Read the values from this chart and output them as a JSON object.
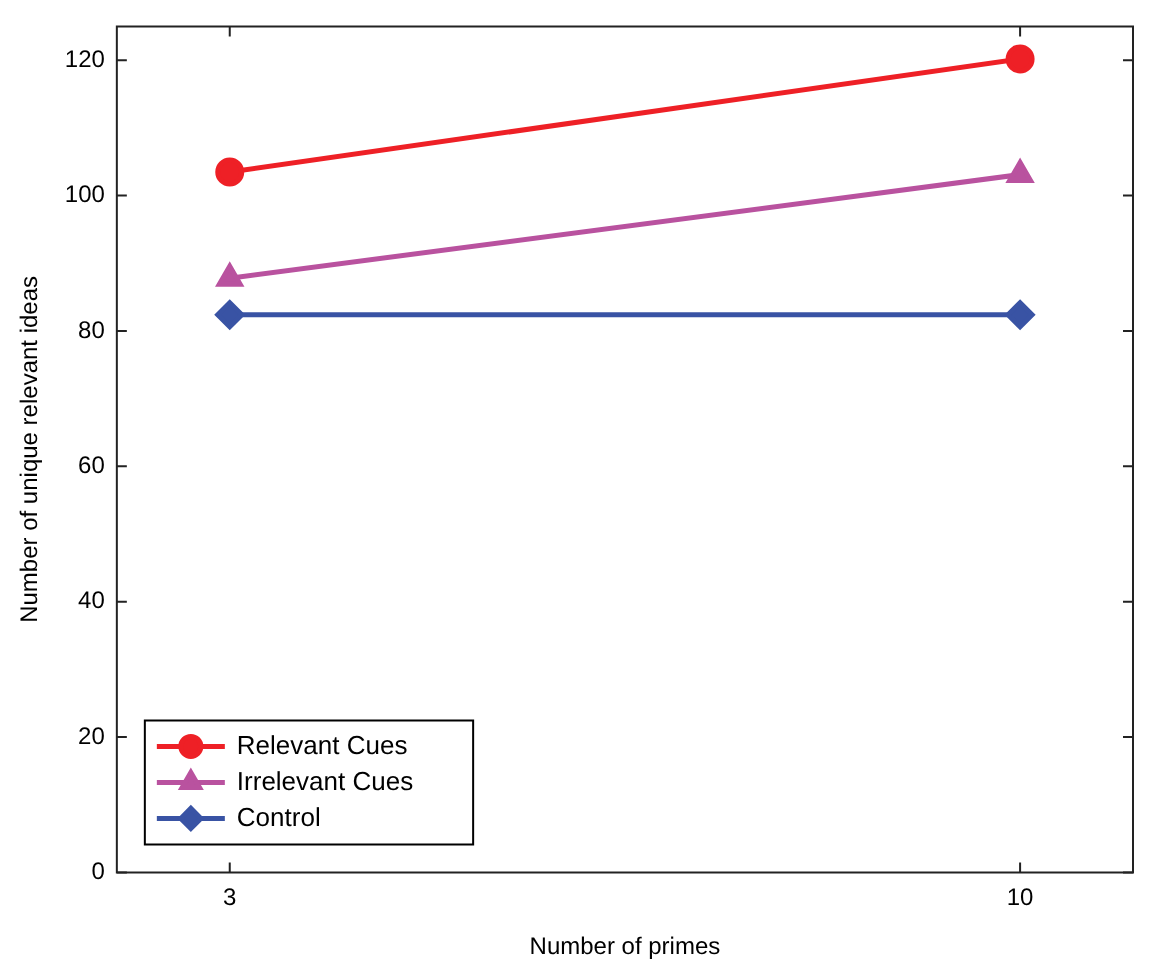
{
  "chart_data": {
    "type": "line",
    "xlabel": "Number of primes",
    "ylabel": "Number of unique relevant ideas",
    "x": [
      3,
      10
    ],
    "xlim": [
      2,
      11
    ],
    "xticks": [
      3,
      10
    ],
    "ylim": [
      0,
      125
    ],
    "yticks": [
      0,
      20,
      40,
      60,
      80,
      100,
      120
    ],
    "grid": false,
    "legend": "bottom left",
    "line_style": "solid",
    "series": [
      {
        "name": "Relevant Cues",
        "color": "#ee2026",
        "marker": "circle",
        "values": [
          103.5,
          120.2
        ]
      },
      {
        "name": "Irrelevant Cues",
        "color": "#b9529f",
        "marker": "triangle",
        "values": [
          87.8,
          103.1
        ]
      },
      {
        "name": "Control",
        "color": "#3953a4",
        "marker": "diamond",
        "values": [
          82.4,
          82.4
        ]
      }
    ]
  }
}
